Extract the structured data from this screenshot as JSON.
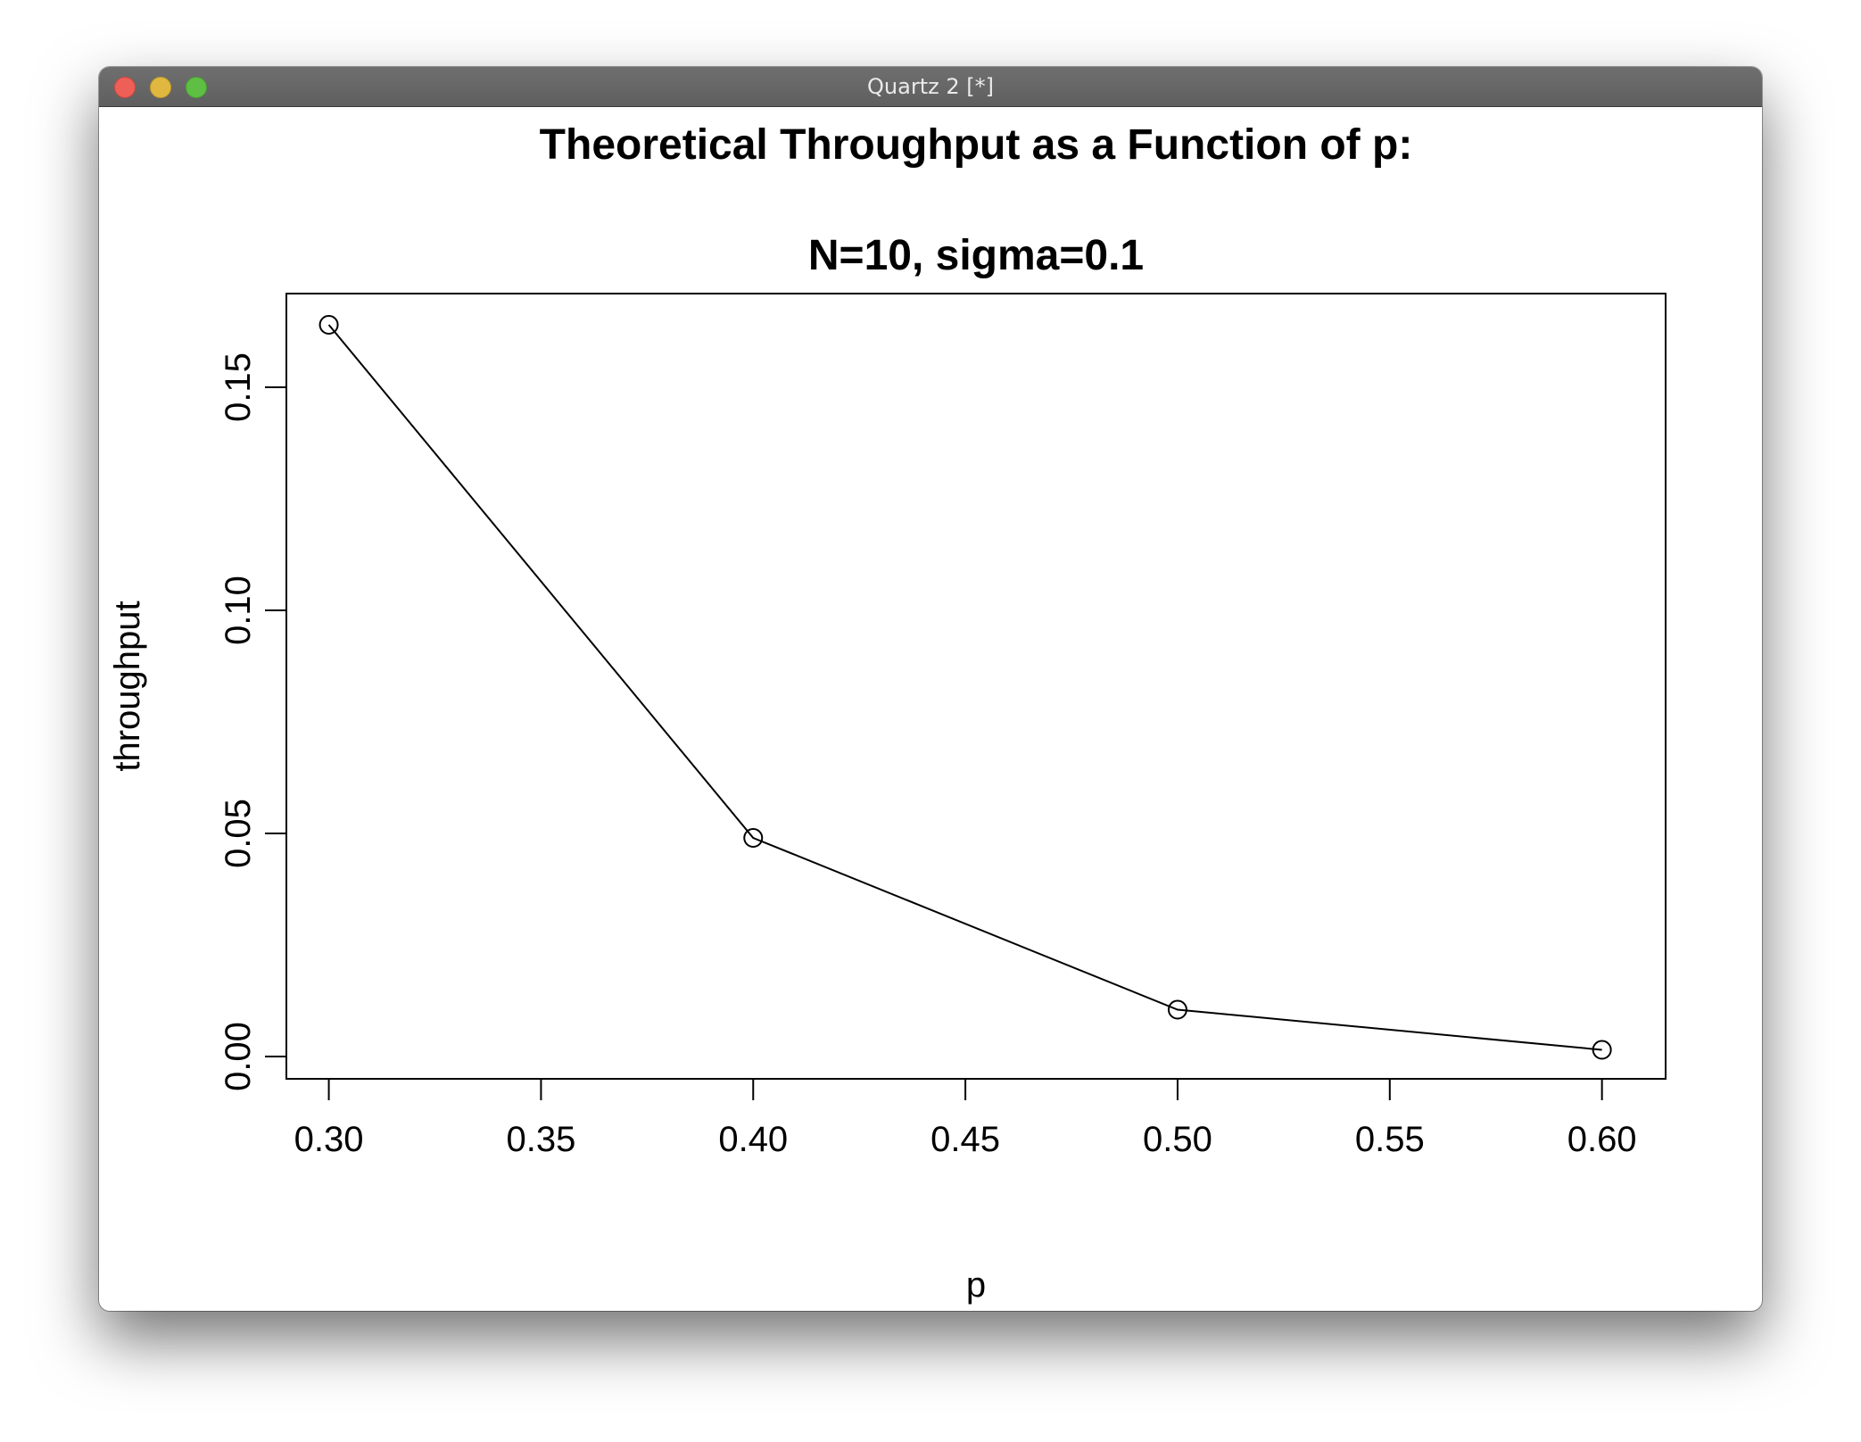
{
  "window": {
    "title": "Quartz 2 [*]",
    "traffic_lights": {
      "close": {
        "icon": "close-icon",
        "color": "#ee5f57"
      },
      "minimize": {
        "icon": "minimize-icon",
        "color": "#e1b83f"
      },
      "zoom": {
        "icon": "zoom-icon",
        "color": "#5fbf45"
      }
    }
  },
  "chart_data": {
    "type": "line",
    "title": "Theoretical Throughput as a Function of p:",
    "subtitle": "N=10, sigma=0.1",
    "xlabel": "p",
    "ylabel": "throughput",
    "xlim": [
      0.29,
      0.615
    ],
    "ylim": [
      -0.005,
      0.171
    ],
    "x_ticks": [
      0.3,
      0.35,
      0.4,
      0.45,
      0.5,
      0.55,
      0.6
    ],
    "x_tick_labels": [
      "0.30",
      "0.35",
      "0.40",
      "0.45",
      "0.50",
      "0.55",
      "0.60"
    ],
    "y_ticks": [
      0.0,
      0.05,
      0.1,
      0.15
    ],
    "y_tick_labels": [
      "0.00",
      "0.05",
      "0.10",
      "0.15"
    ],
    "x": [
      0.3,
      0.4,
      0.5,
      0.6
    ],
    "y": [
      0.164,
      0.049,
      0.0105,
      0.0015
    ],
    "marker": "open-circle",
    "grid": false
  }
}
